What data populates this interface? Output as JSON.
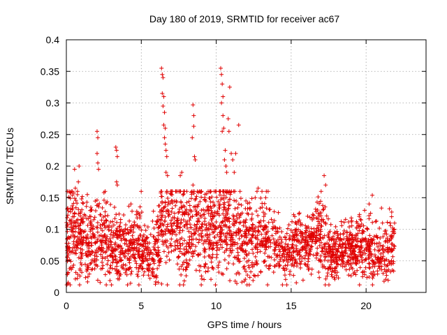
{
  "chart_data": {
    "type": "scatter",
    "title": "Day 180 of 2019, SRMTID for receiver ac67",
    "xlabel": "GPS time / hours",
    "ylabel": "SRMTID / TECUs",
    "xlim": [
      0,
      24
    ],
    "ylim": [
      0,
      0.4
    ],
    "xticks": [
      0,
      5,
      10,
      15,
      20
    ],
    "xtick_labels": [
      "0",
      "5",
      "10",
      "15",
      "20"
    ],
    "yticks": [
      0,
      0.05,
      0.1,
      0.15,
      0.2,
      0.25,
      0.3,
      0.35,
      0.4
    ],
    "ytick_labels": [
      "0",
      "0.05",
      "0.1",
      "0.15",
      "0.2",
      "0.25",
      "0.3",
      "0.35",
      "0.4"
    ],
    "grid": true,
    "marker": "+",
    "color": "#e00000",
    "series": [
      {
        "name": "SRMTID",
        "x_range": [
          0,
          21.9
        ],
        "envelope": [
          [
            0.0,
            0.075,
            0.035
          ],
          [
            0.5,
            0.1,
            0.04
          ],
          [
            1.0,
            0.09,
            0.035
          ],
          [
            1.5,
            0.085,
            0.03
          ],
          [
            2.0,
            0.09,
            0.035
          ],
          [
            2.5,
            0.08,
            0.03
          ],
          [
            3.0,
            0.075,
            0.03
          ],
          [
            3.5,
            0.08,
            0.03
          ],
          [
            4.0,
            0.065,
            0.02
          ],
          [
            4.5,
            0.07,
            0.025
          ],
          [
            5.0,
            0.075,
            0.025
          ],
          [
            5.5,
            0.06,
            0.02
          ],
          [
            6.0,
            0.065,
            0.025
          ],
          [
            6.5,
            0.11,
            0.04
          ],
          [
            7.0,
            0.11,
            0.04
          ],
          [
            7.5,
            0.1,
            0.035
          ],
          [
            8.0,
            0.095,
            0.035
          ],
          [
            8.5,
            0.1,
            0.035
          ],
          [
            9.0,
            0.1,
            0.035
          ],
          [
            9.5,
            0.095,
            0.035
          ],
          [
            10.0,
            0.105,
            0.04
          ],
          [
            10.5,
            0.11,
            0.04
          ],
          [
            11.0,
            0.1,
            0.035
          ],
          [
            11.5,
            0.085,
            0.03
          ],
          [
            12.0,
            0.075,
            0.03
          ],
          [
            12.5,
            0.08,
            0.03
          ],
          [
            13.0,
            0.09,
            0.03
          ],
          [
            13.5,
            0.085,
            0.03
          ],
          [
            14.0,
            0.075,
            0.025
          ],
          [
            14.5,
            0.06,
            0.025
          ],
          [
            15.0,
            0.075,
            0.025
          ],
          [
            15.5,
            0.07,
            0.025
          ],
          [
            16.0,
            0.08,
            0.025
          ],
          [
            16.5,
            0.085,
            0.025
          ],
          [
            17.0,
            0.09,
            0.03
          ],
          [
            17.5,
            0.06,
            0.02
          ],
          [
            18.0,
            0.06,
            0.02
          ],
          [
            18.5,
            0.065,
            0.02
          ],
          [
            19.0,
            0.07,
            0.02
          ],
          [
            19.5,
            0.07,
            0.025
          ],
          [
            20.0,
            0.065,
            0.02
          ],
          [
            20.5,
            0.065,
            0.025
          ],
          [
            21.0,
            0.055,
            0.02
          ],
          [
            21.5,
            0.065,
            0.025
          ],
          [
            21.9,
            0.075,
            0.025
          ]
        ],
        "peaks": [
          [
            0.55,
            0.195
          ],
          [
            0.6,
            0.165
          ],
          [
            0.85,
            0.2
          ],
          [
            0.8,
            0.175
          ],
          [
            1.4,
            0.155
          ],
          [
            2.05,
            0.255
          ],
          [
            2.1,
            0.245
          ],
          [
            2.05,
            0.22
          ],
          [
            2.1,
            0.205
          ],
          [
            2.15,
            0.195
          ],
          [
            3.3,
            0.23
          ],
          [
            3.35,
            0.225
          ],
          [
            3.4,
            0.215
          ],
          [
            3.35,
            0.175
          ],
          [
            3.4,
            0.17
          ],
          [
            6.35,
            0.355
          ],
          [
            6.4,
            0.345
          ],
          [
            6.45,
            0.34
          ],
          [
            6.4,
            0.315
          ],
          [
            6.5,
            0.31
          ],
          [
            6.45,
            0.295
          ],
          [
            6.55,
            0.285
          ],
          [
            6.5,
            0.265
          ],
          [
            6.6,
            0.26
          ],
          [
            6.55,
            0.245
          ],
          [
            6.6,
            0.235
          ],
          [
            6.65,
            0.225
          ],
          [
            6.7,
            0.215
          ],
          [
            6.65,
            0.19
          ],
          [
            6.75,
            0.185
          ],
          [
            7.6,
            0.185
          ],
          [
            7.7,
            0.19
          ],
          [
            8.45,
            0.297
          ],
          [
            8.5,
            0.28
          ],
          [
            8.5,
            0.263
          ],
          [
            8.4,
            0.245
          ],
          [
            8.55,
            0.215
          ],
          [
            8.6,
            0.21
          ],
          [
            8.45,
            0.17
          ],
          [
            9.0,
            0.16
          ],
          [
            10.3,
            0.355
          ],
          [
            10.35,
            0.345
          ],
          [
            10.4,
            0.33
          ],
          [
            10.45,
            0.31
          ],
          [
            10.35,
            0.3
          ],
          [
            10.45,
            0.28
          ],
          [
            10.5,
            0.26
          ],
          [
            10.4,
            0.255
          ],
          [
            10.6,
            0.225
          ],
          [
            10.55,
            0.21
          ],
          [
            10.65,
            0.2
          ],
          [
            10.7,
            0.19
          ],
          [
            10.8,
            0.275
          ],
          [
            10.85,
            0.255
          ],
          [
            10.9,
            0.325
          ],
          [
            11.0,
            0.22
          ],
          [
            11.1,
            0.21
          ],
          [
            11.2,
            0.19
          ],
          [
            11.5,
            0.265
          ],
          [
            11.3,
            0.22
          ],
          [
            12.6,
            0.15
          ],
          [
            12.8,
            0.165
          ],
          [
            13.3,
            0.15
          ],
          [
            17.2,
            0.185
          ],
          [
            17.3,
            0.17
          ],
          [
            17.0,
            0.16
          ],
          [
            19.9,
            0.13
          ],
          [
            20.2,
            0.14
          ],
          [
            21.6,
            0.11
          ]
        ]
      }
    ]
  }
}
